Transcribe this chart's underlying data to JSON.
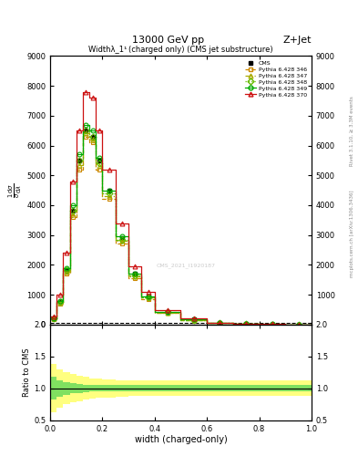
{
  "title_top": "13000 GeV pp",
  "title_right": "Z+Jet",
  "plot_title": "Widthλ_1¹ (charged only) (CMS jet substructure)",
  "xlabel": "width (charged-only)",
  "ylabel_ratio": "Ratio to CMS",
  "right_label_top": "Rivet 3.1.10, ≥ 3.3M events",
  "right_label_bottom": "mcplots.cern.ch [arXiv:1306.3436]",
  "watermark": "CMS_2021_I1920187",
  "x_bins": [
    0.0,
    0.025,
    0.05,
    0.075,
    0.1,
    0.125,
    0.15,
    0.175,
    0.2,
    0.25,
    0.3,
    0.35,
    0.4,
    0.5,
    0.6,
    0.7,
    0.8,
    0.9,
    1.0
  ],
  "cms_data": [
    200,
    750,
    1800,
    3800,
    5500,
    6500,
    6300,
    5500,
    4500,
    2900,
    1700,
    950,
    420,
    160,
    55,
    18,
    6,
    2
  ],
  "py346_data": [
    180,
    700,
    1700,
    3600,
    5200,
    6300,
    6100,
    5200,
    4200,
    2700,
    1550,
    860,
    380,
    145,
    50,
    16,
    5,
    2
  ],
  "py347_data": [
    190,
    730,
    1750,
    3700,
    5350,
    6400,
    6200,
    5300,
    4300,
    2800,
    1600,
    900,
    400,
    155,
    53,
    17,
    6,
    2
  ],
  "py348_data": [
    200,
    760,
    1820,
    3820,
    5500,
    6520,
    6300,
    5400,
    4380,
    2850,
    1640,
    920,
    410,
    158,
    55,
    18,
    6,
    2
  ],
  "py349_data": [
    220,
    800,
    1900,
    4000,
    5700,
    6700,
    6500,
    5600,
    4500,
    2950,
    1700,
    950,
    430,
    165,
    58,
    19,
    7,
    2
  ],
  "py370_data": [
    280,
    1000,
    2400,
    4800,
    6500,
    7800,
    7600,
    6500,
    5200,
    3400,
    1950,
    1100,
    490,
    190,
    67,
    22,
    8,
    3
  ],
  "cms_color": "#000000",
  "py346_color": "#cc8800",
  "py347_color": "#aaaa00",
  "py348_color": "#66bb00",
  "py349_color": "#00aa00",
  "py370_color": "#cc1010",
  "ylim_main": [
    0,
    9000
  ],
  "yticks_main": [
    0,
    1000,
    2000,
    3000,
    4000,
    5000,
    6000,
    7000,
    8000,
    9000
  ],
  "ylim_ratio": [
    0.5,
    2.0
  ],
  "yticks_ratio": [
    0.5,
    1.0,
    1.5,
    2.0
  ],
  "xlim": [
    0.0,
    1.0
  ],
  "ratio_yellow_lo": [
    0.62,
    0.7,
    0.75,
    0.78,
    0.8,
    0.82,
    0.84,
    0.85,
    0.86,
    0.87,
    0.88,
    0.88,
    0.88,
    0.88,
    0.88,
    0.88,
    0.88,
    0.88
  ],
  "ratio_yellow_hi": [
    1.38,
    1.3,
    1.25,
    1.22,
    1.2,
    1.18,
    1.16,
    1.15,
    1.14,
    1.13,
    1.12,
    1.12,
    1.12,
    1.12,
    1.12,
    1.12,
    1.12,
    1.12
  ],
  "ratio_green_lo": [
    0.82,
    0.87,
    0.9,
    0.92,
    0.93,
    0.94,
    0.95,
    0.95,
    0.95,
    0.95,
    0.95,
    0.95,
    0.95,
    0.95,
    0.95,
    0.95,
    0.95,
    0.95
  ],
  "ratio_green_hi": [
    1.18,
    1.13,
    1.1,
    1.08,
    1.07,
    1.06,
    1.05,
    1.05,
    1.05,
    1.05,
    1.05,
    1.05,
    1.05,
    1.05,
    1.05,
    1.05,
    1.05,
    1.05
  ]
}
